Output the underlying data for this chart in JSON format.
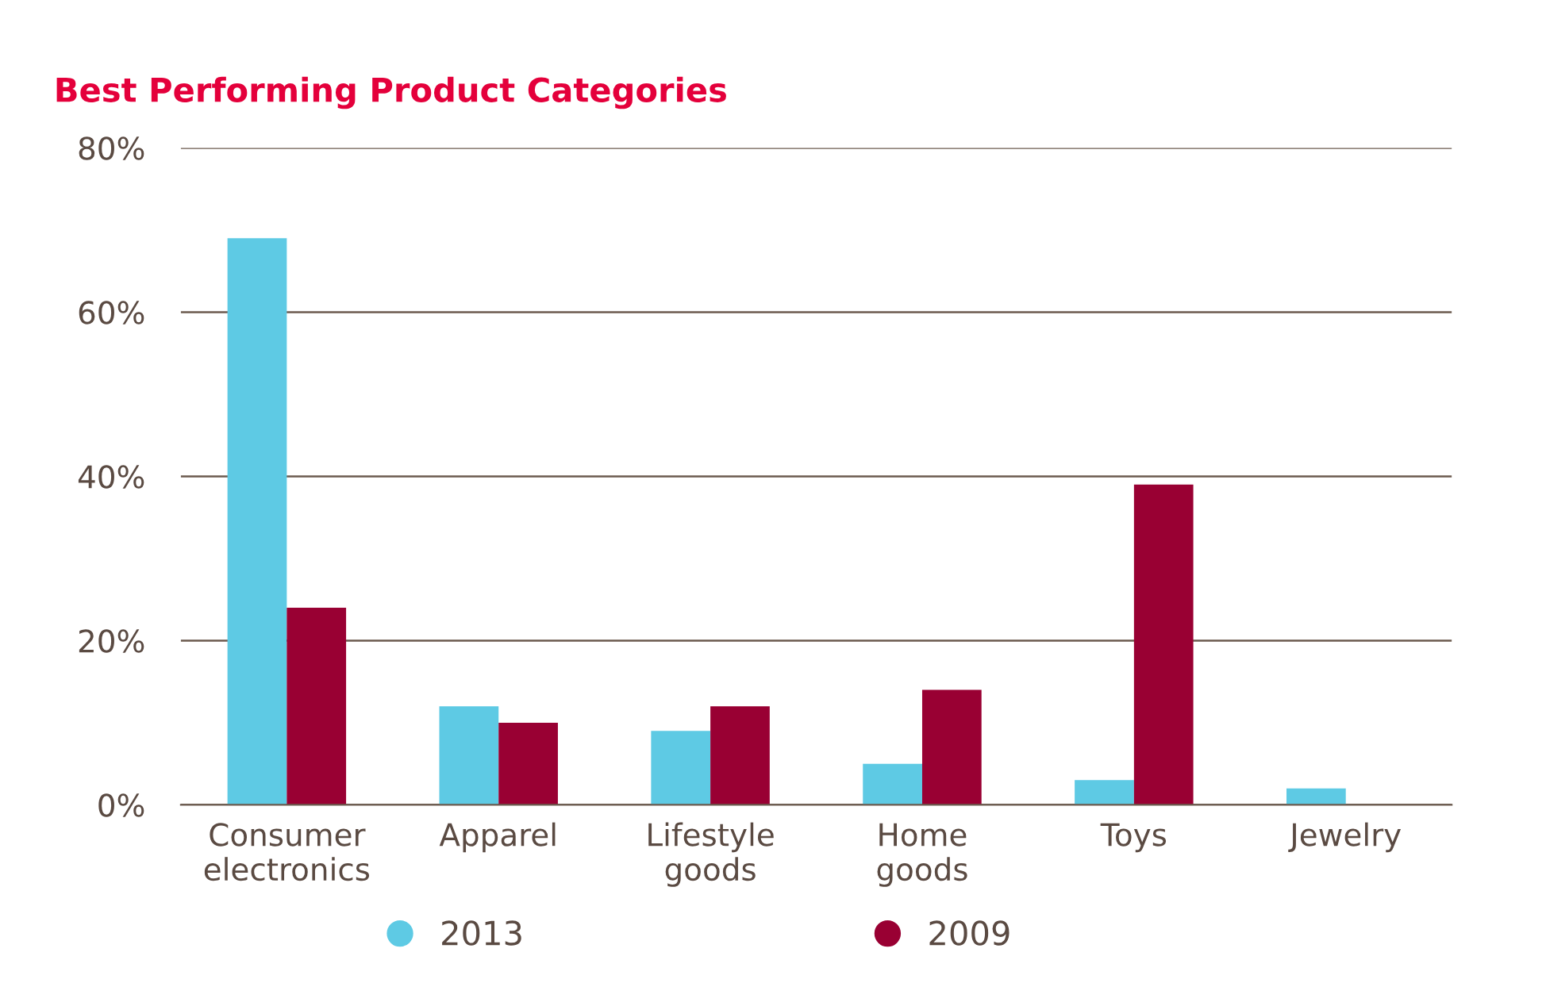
{
  "chart_data": {
    "type": "bar",
    "title": "Best Performing Product Categories",
    "categories": [
      "Consumer\nelectronics",
      "Apparel",
      "Lifestyle\ngoods",
      "Home\ngoods",
      "Toys",
      "Jewelry"
    ],
    "series": [
      {
        "name": "2013",
        "color": "#5ecae4",
        "values": [
          69,
          12,
          9,
          5,
          3,
          2
        ]
      },
      {
        "name": "2009",
        "color": "#990033",
        "values": [
          24,
          10,
          12,
          14,
          39,
          null
        ]
      }
    ],
    "ylim": [
      0,
      80
    ],
    "yticks": [
      {
        "value": 0,
        "label": "0%"
      },
      {
        "value": 20,
        "label": "20%"
      },
      {
        "value": 40,
        "label": "40%"
      },
      {
        "value": 60,
        "label": "60%"
      },
      {
        "value": 80,
        "label": "80%"
      }
    ],
    "grid": "y",
    "legend": "bottom"
  }
}
